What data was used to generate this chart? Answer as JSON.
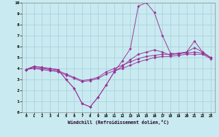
{
  "bg_color": "#c8eaf0",
  "grid_color": "#a8ccd8",
  "line_color": "#993399",
  "xlabel": "Windchill (Refroidissement éolien,°C)",
  "xlim": [
    -0.5,
    23.5
  ],
  "ylim": [
    0,
    10
  ],
  "xticks": [
    0,
    1,
    2,
    3,
    4,
    5,
    6,
    7,
    8,
    9,
    10,
    11,
    12,
    13,
    14,
    15,
    16,
    17,
    18,
    19,
    20,
    21,
    22,
    23
  ],
  "yticks": [
    0,
    1,
    2,
    3,
    4,
    5,
    6,
    7,
    8,
    9,
    10
  ],
  "lines": [
    {
      "x": [
        0,
        1,
        2,
        3,
        4,
        5,
        6,
        7,
        8,
        9,
        10,
        11,
        12,
        13,
        14,
        15,
        16,
        17,
        18,
        19,
        20,
        21,
        22,
        23
      ],
      "y": [
        3.9,
        4.2,
        4.1,
        4.0,
        3.9,
        3.0,
        2.2,
        0.8,
        0.5,
        1.4,
        2.5,
        3.7,
        4.7,
        5.8,
        9.7,
        10.0,
        9.1,
        7.0,
        5.4,
        5.3,
        5.5,
        6.5,
        5.5,
        5.0
      ]
    },
    {
      "x": [
        0,
        1,
        2,
        3,
        4,
        5,
        6,
        7,
        8,
        9,
        10,
        11,
        12,
        13,
        14,
        15,
        16,
        17,
        18,
        19,
        20,
        21,
        22,
        23
      ],
      "y": [
        3.9,
        4.2,
        4.1,
        4.0,
        3.9,
        3.0,
        2.2,
        0.8,
        0.5,
        1.4,
        2.5,
        3.7,
        4.2,
        4.8,
        5.3,
        5.5,
        5.7,
        5.5,
        5.2,
        5.4,
        5.5,
        5.9,
        5.5,
        5.0
      ]
    },
    {
      "x": [
        0,
        1,
        2,
        3,
        4,
        5,
        6,
        7,
        8,
        9,
        10,
        11,
        12,
        13,
        14,
        15,
        16,
        17,
        18,
        19,
        20,
        21,
        22,
        23
      ],
      "y": [
        3.9,
        4.1,
        4.0,
        3.9,
        3.8,
        3.5,
        3.2,
        2.9,
        3.0,
        3.2,
        3.7,
        4.0,
        4.3,
        4.6,
        4.9,
        5.1,
        5.2,
        5.3,
        5.3,
        5.4,
        5.4,
        5.5,
        5.4,
        5.0
      ]
    },
    {
      "x": [
        0,
        1,
        2,
        3,
        4,
        5,
        6,
        7,
        8,
        9,
        10,
        11,
        12,
        13,
        14,
        15,
        16,
        17,
        18,
        19,
        20,
        21,
        22,
        23
      ],
      "y": [
        3.9,
        4.0,
        3.9,
        3.8,
        3.7,
        3.4,
        3.1,
        2.8,
        2.9,
        3.1,
        3.5,
        3.8,
        4.0,
        4.3,
        4.6,
        4.8,
        5.0,
        5.1,
        5.1,
        5.2,
        5.3,
        5.3,
        5.3,
        4.9
      ]
    }
  ]
}
